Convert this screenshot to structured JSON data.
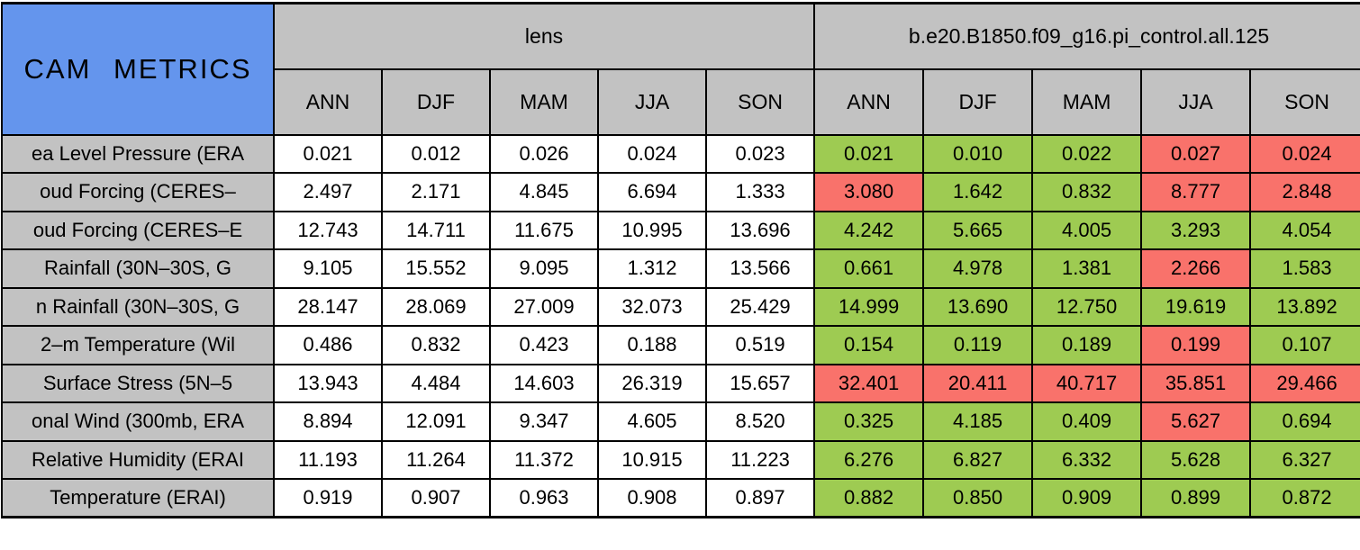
{
  "colors": {
    "title_background": "#6495ED",
    "header_background": "#C2C2C2",
    "label_background": "#C2C2C2",
    "value_background": "#FFFFFF",
    "green_highlight": "#9ECB52",
    "red_highlight": "#F9726B",
    "grid": "#000000"
  },
  "chart_data": {
    "type": "table",
    "title": "CAM METRICS",
    "column_groups": [
      {
        "label": "lens"
      },
      {
        "label": "b.e20.B1850.f09_g16.pi_control.all.125"
      }
    ],
    "season_columns": [
      "ANN",
      "DJF",
      "MAM",
      "JJA",
      "SON"
    ],
    "rows": [
      {
        "label": "ea Level Pressure (ERA",
        "lens": [
          "0.021",
          "0.012",
          "0.026",
          "0.024",
          "0.023"
        ],
        "control": [
          "0.021",
          "0.010",
          "0.022",
          "0.027",
          "0.024"
        ],
        "control_colors": [
          "green",
          "green",
          "green",
          "red",
          "red"
        ]
      },
      {
        "label": "oud Forcing (CERES–",
        "lens": [
          "2.497",
          "2.171",
          "4.845",
          "6.694",
          "1.333"
        ],
        "control": [
          "3.080",
          "1.642",
          "0.832",
          "8.777",
          "2.848"
        ],
        "control_colors": [
          "red",
          "green",
          "green",
          "red",
          "red"
        ]
      },
      {
        "label": "oud Forcing (CERES–E",
        "lens": [
          "12.743",
          "14.711",
          "11.675",
          "10.995",
          "13.696"
        ],
        "control": [
          "4.242",
          "5.665",
          "4.005",
          "3.293",
          "4.054"
        ],
        "control_colors": [
          "green",
          "green",
          "green",
          "green",
          "green"
        ]
      },
      {
        "label": "Rainfall (30N–30S, G",
        "lens": [
          "9.105",
          "15.552",
          "9.095",
          "1.312",
          "13.566"
        ],
        "control": [
          "0.661",
          "4.978",
          "1.381",
          "2.266",
          "1.583"
        ],
        "control_colors": [
          "green",
          "green",
          "green",
          "red",
          "green"
        ]
      },
      {
        "label": "n Rainfall (30N–30S, G",
        "lens": [
          "28.147",
          "28.069",
          "27.009",
          "32.073",
          "25.429"
        ],
        "control": [
          "14.999",
          "13.690",
          "12.750",
          "19.619",
          "13.892"
        ],
        "control_colors": [
          "green",
          "green",
          "green",
          "green",
          "green"
        ]
      },
      {
        "label": "2–m Temperature (Wil",
        "lens": [
          "0.486",
          "0.832",
          "0.423",
          "0.188",
          "0.519"
        ],
        "control": [
          "0.154",
          "0.119",
          "0.189",
          "0.199",
          "0.107"
        ],
        "control_colors": [
          "green",
          "green",
          "green",
          "red",
          "green"
        ]
      },
      {
        "label": "Surface Stress (5N–5",
        "lens": [
          "13.943",
          "4.484",
          "14.603",
          "26.319",
          "15.657"
        ],
        "control": [
          "32.401",
          "20.411",
          "40.717",
          "35.851",
          "29.466"
        ],
        "control_colors": [
          "red",
          "red",
          "red",
          "red",
          "red"
        ]
      },
      {
        "label": "onal Wind (300mb, ERA",
        "lens": [
          "8.894",
          "12.091",
          "9.347",
          "4.605",
          "8.520"
        ],
        "control": [
          "0.325",
          "4.185",
          "0.409",
          "5.627",
          "0.694"
        ],
        "control_colors": [
          "green",
          "green",
          "green",
          "red",
          "green"
        ]
      },
      {
        "label": "Relative Humidity (ERAI",
        "lens": [
          "11.193",
          "11.264",
          "11.372",
          "10.915",
          "11.223"
        ],
        "control": [
          "6.276",
          "6.827",
          "6.332",
          "5.628",
          "6.327"
        ],
        "control_colors": [
          "green",
          "green",
          "green",
          "green",
          "green"
        ]
      },
      {
        "label": "Temperature (ERAI)",
        "lens": [
          "0.919",
          "0.907",
          "0.963",
          "0.908",
          "0.897"
        ],
        "control": [
          "0.882",
          "0.850",
          "0.909",
          "0.899",
          "0.872"
        ],
        "control_colors": [
          "green",
          "green",
          "green",
          "green",
          "green"
        ]
      }
    ]
  }
}
